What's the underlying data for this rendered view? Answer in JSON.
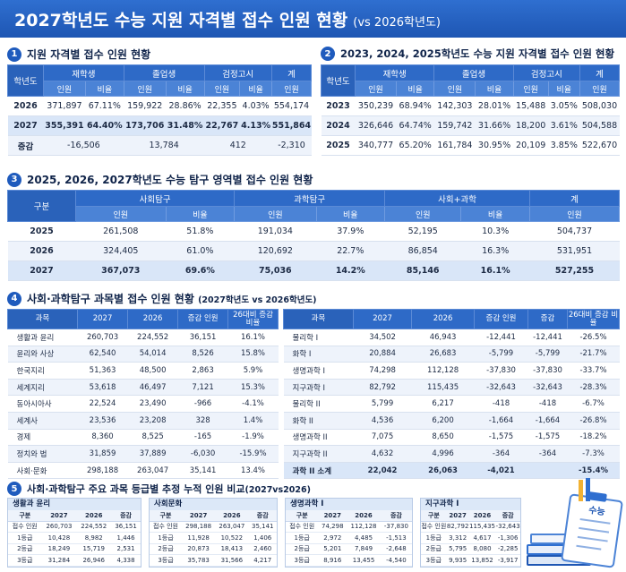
{
  "title": {
    "main": "2027학년도 수능 지원 자격별 접수 인원 현황",
    "sub": "(vs 2026학년도)"
  },
  "s1": {
    "num": "1",
    "title": "지원 자격별 접수 인원 현황",
    "h_year": "학년도",
    "h_g1": "재학생",
    "h_g2": "졸업생",
    "h_g3": "검정고시",
    "h_total": "계",
    "h_cnt": "인원",
    "h_rat": "비율",
    "rows": [
      [
        "2026",
        "371,897",
        "67.11%",
        "159,922",
        "28.86%",
        "22,355",
        "4.03%",
        "554,174"
      ],
      [
        "2027",
        "355,391",
        "64.40%",
        "173,706",
        "31.48%",
        "22,767",
        "4.13%",
        "551,864"
      ]
    ],
    "diff": [
      "증감",
      "-16,506",
      "13,784",
      "412",
      "-2,310"
    ]
  },
  "s2": {
    "num": "2",
    "title": "2023, 2024, 2025학년도 수능 지원 자격별 접수 인원 현황",
    "rows": [
      [
        "2023",
        "350,239",
        "68.94%",
        "142,303",
        "28.01%",
        "15,488",
        "3.05%",
        "508,030"
      ],
      [
        "2024",
        "326,646",
        "64.74%",
        "159,742",
        "31.66%",
        "18,200",
        "3.61%",
        "504,588"
      ],
      [
        "2025",
        "340,777",
        "65.20%",
        "161,784",
        "30.95%",
        "20,109",
        "3.85%",
        "522,670"
      ]
    ]
  },
  "s3": {
    "num": "3",
    "title": "2025, 2026, 2027학년도 수능 탐구 영역별 접수 인원 현황",
    "h_div": "구분",
    "h_g1": "사회탐구",
    "h_g2": "과학탐구",
    "h_g3": "사회+과학",
    "h_total": "계",
    "rows": [
      [
        "2025",
        "261,508",
        "51.8%",
        "191,034",
        "37.9%",
        "52,195",
        "10.3%",
        "504,737"
      ],
      [
        "2026",
        "324,405",
        "61.0%",
        "120,692",
        "22.7%",
        "86,854",
        "16.3%",
        "531,951"
      ],
      [
        "2027",
        "367,073",
        "69.6%",
        "75,036",
        "14.2%",
        "85,146",
        "16.1%",
        "527,255"
      ]
    ]
  },
  "s4": {
    "num": "4",
    "title": "사회·과학탐구 과목별 접수 인원 현황",
    "sub": "(2027학년도 vs 2026학년도)",
    "left": {
      "h": [
        "과목",
        "2027",
        "2026",
        "증감 인원",
        "26대비 증감 비율"
      ],
      "rows": [
        [
          "생활과 윤리",
          "260,703",
          "224,552",
          "36,151",
          "16.1%"
        ],
        [
          "윤리와 사상",
          "62,540",
          "54,014",
          "8,526",
          "15.8%"
        ],
        [
          "한국지리",
          "51,363",
          "48,500",
          "2,863",
          "5.9%"
        ],
        [
          "세계지리",
          "53,618",
          "46,497",
          "7,121",
          "15.3%"
        ],
        [
          "동아시아사",
          "22,524",
          "23,490",
          "-966",
          "-4.1%"
        ],
        [
          "세계사",
          "23,536",
          "23,208",
          "328",
          "1.4%"
        ],
        [
          "경제",
          "8,360",
          "8,525",
          "-165",
          "-1.9%"
        ],
        [
          "정치와 법",
          "31,859",
          "37,889",
          "-6,030",
          "-15.9%"
        ],
        [
          "사회·문화",
          "298,188",
          "263,047",
          "35,141",
          "13.4%"
        ]
      ]
    },
    "right": {
      "h": [
        "과목",
        "2027",
        "2026",
        "증감 인원",
        "증감",
        "26대비 증감 비율"
      ],
      "rows": [
        [
          "물리학 I",
          "34,502",
          "46,943",
          "-12,441",
          "-12,441",
          "-26.5%"
        ],
        [
          "화학 I",
          "20,884",
          "26,683",
          "-5,799",
          "-5,799",
          "-21.7%"
        ],
        [
          "생명과학 I",
          "74,298",
          "112,128",
          "-37,830",
          "-37,830",
          "-33.7%"
        ],
        [
          "지구과학 I",
          "82,792",
          "115,435",
          "-32,643",
          "-32,643",
          "-28.3%"
        ],
        [
          "물리학 II",
          "5,799",
          "6,217",
          "-418",
          "-418",
          "-6.7%"
        ],
        [
          "화학 II",
          "4,536",
          "6,200",
          "-1,664",
          "-1,664",
          "-26.8%"
        ],
        [
          "생명과학 II",
          "7,075",
          "8,650",
          "-1,575",
          "-1,575",
          "-18.2%"
        ],
        [
          "지구과학 II",
          "4,632",
          "4,996",
          "-364",
          "-364",
          "-7.3%"
        ],
        [
          "과학 II 소계",
          "22,042",
          "26,063",
          "-4,021",
          "",
          "-15.4%"
        ]
      ]
    }
  },
  "s5": {
    "num": "5",
    "title": "사회·과학탐구 주요 과목 등급별 추정 누적 인원 비교",
    "sub": "(2027vs2026)",
    "h": [
      "구분",
      "2027",
      "2026",
      "증감"
    ],
    "cards": [
      {
        "title": "생활과 윤리",
        "rows": [
          [
            "접수 인원",
            "260,703",
            "224,552",
            "36,151"
          ],
          [
            "1등급",
            "10,428",
            "8,982",
            "1,446"
          ],
          [
            "2등급",
            "18,249",
            "15,719",
            "2,531"
          ],
          [
            "3등급",
            "31,284",
            "26,946",
            "4,338"
          ]
        ]
      },
      {
        "title": "사회문화",
        "rows": [
          [
            "접수 인원",
            "298,188",
            "263,047",
            "35,141"
          ],
          [
            "1등급",
            "11,928",
            "10,522",
            "1,406"
          ],
          [
            "2등급",
            "20,873",
            "18,413",
            "2,460"
          ],
          [
            "3등급",
            "35,783",
            "31,566",
            "4,217"
          ]
        ]
      },
      {
        "title": "생명과학 I",
        "rows": [
          [
            "접수 인원",
            "74,298",
            "112,128",
            "-37,830"
          ],
          [
            "1등급",
            "2,972",
            "4,485",
            "-1,513"
          ],
          [
            "2등급",
            "5,201",
            "7,849",
            "-2,648"
          ],
          [
            "3등급",
            "8,916",
            "13,455",
            "-4,540"
          ]
        ]
      },
      {
        "title": "지구과학 I",
        "rows": [
          [
            "접수 인원",
            "82,792",
            "115,435",
            "-32,643"
          ],
          [
            "1등급",
            "3,312",
            "4,617",
            "-1,306"
          ],
          [
            "2등급",
            "5,795",
            "8,080",
            "-2,285"
          ],
          [
            "3등급",
            "9,935",
            "13,852",
            "-3,917"
          ]
        ]
      }
    ],
    "illus_label": "수능"
  }
}
